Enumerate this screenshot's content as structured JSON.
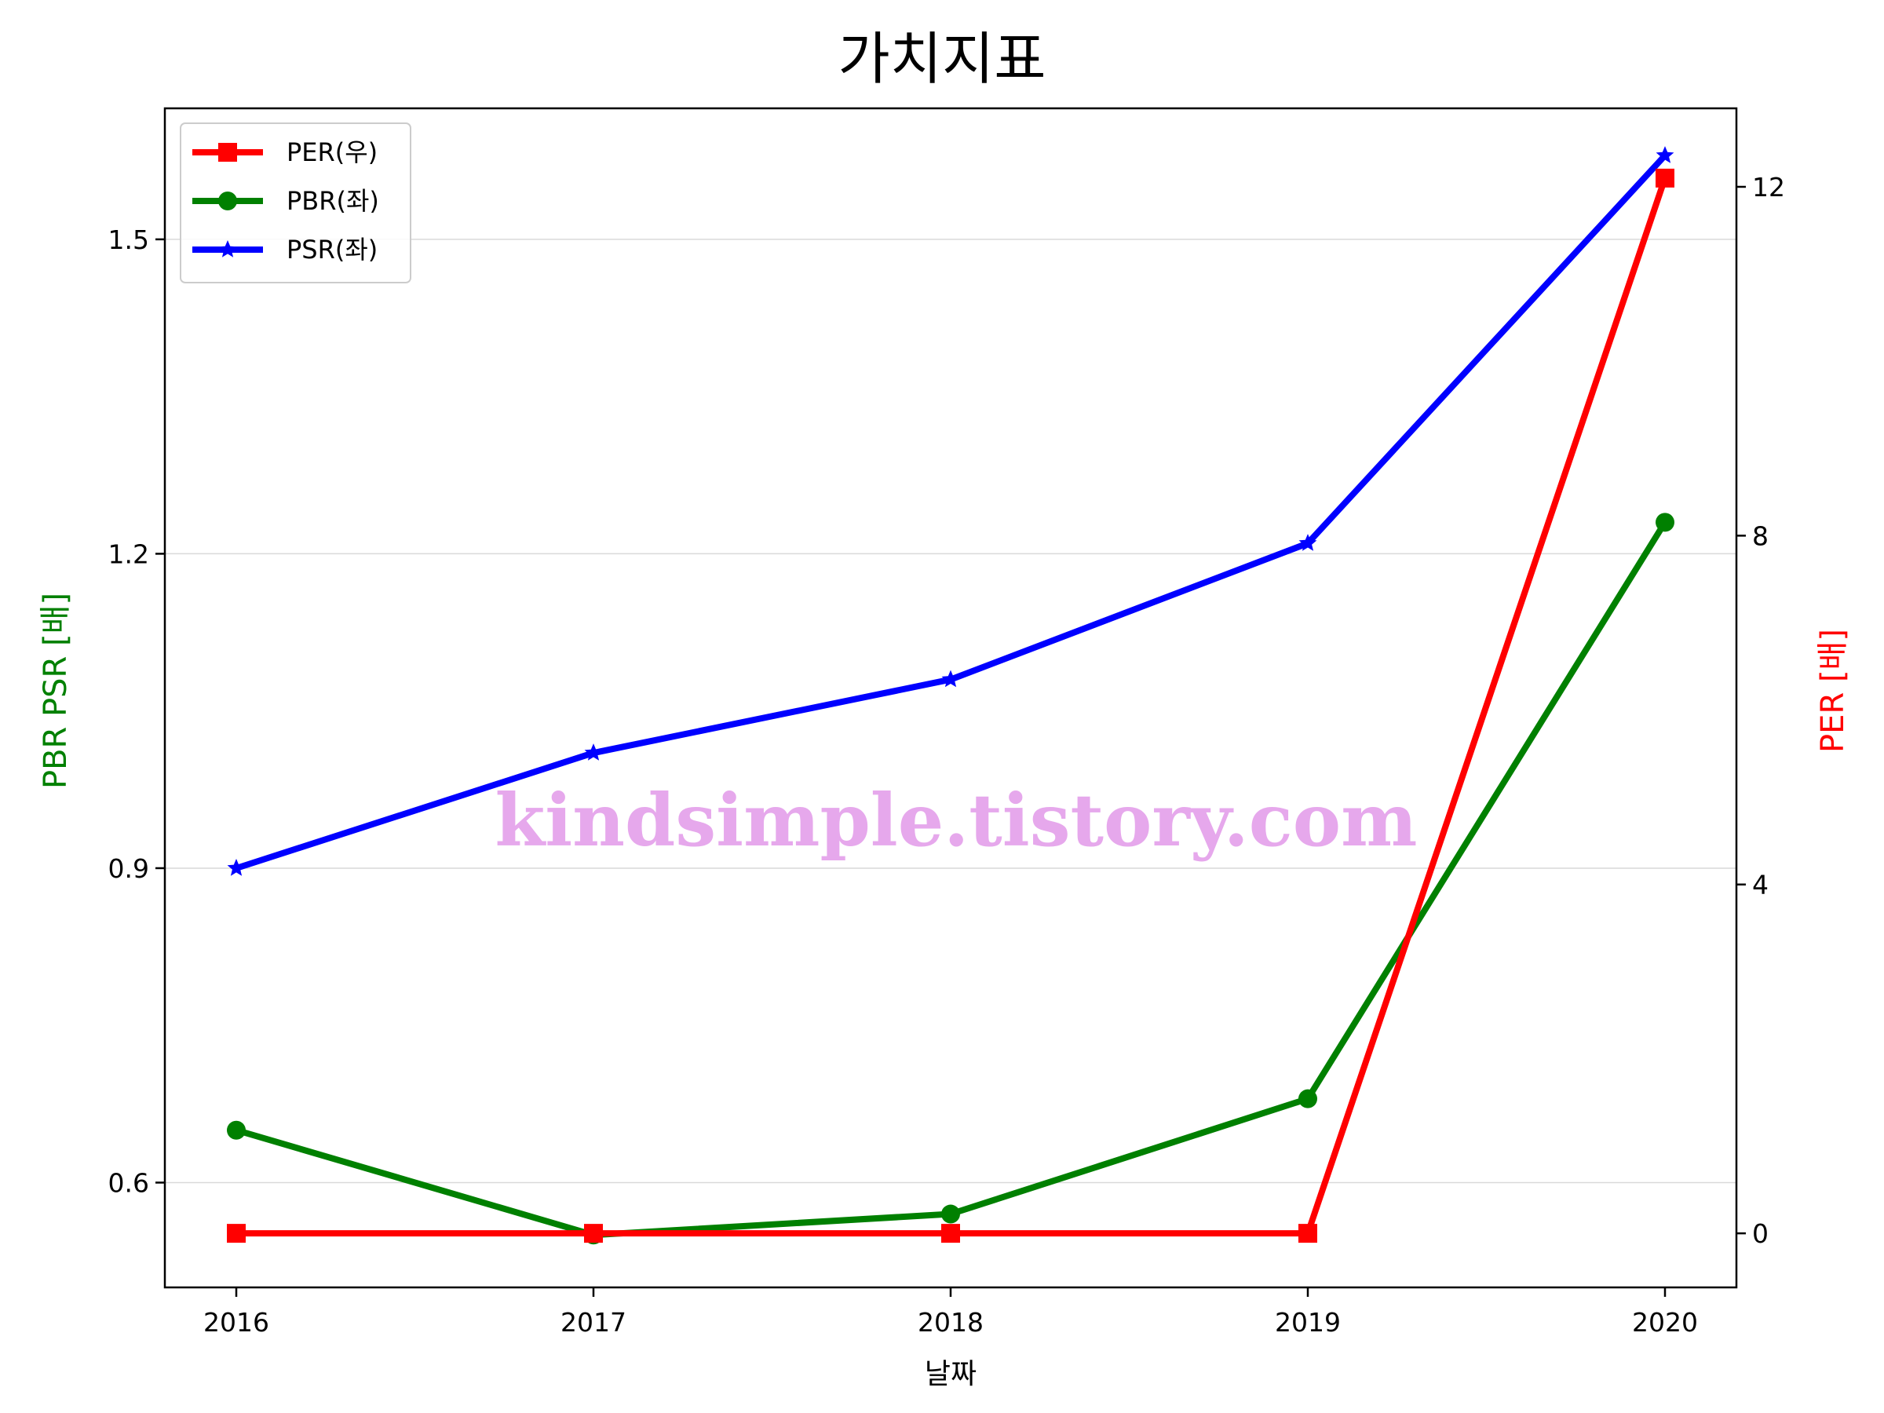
{
  "chart_data": {
    "type": "line",
    "title": "가치지표",
    "xlabel": "날짜",
    "ylabel_left": "PBR PSR [배]",
    "ylabel_right": "PER [배]",
    "categories": [
      "2016",
      "2017",
      "2018",
      "2019",
      "2020"
    ],
    "ylim_left": [
      0.5,
      1.625
    ],
    "yticks_left": [
      0.6,
      0.9,
      1.2,
      1.5
    ],
    "yticks_left_labels": [
      "0.6",
      "0.9",
      "1.2",
      "1.5"
    ],
    "ylim_right": [
      -0.62,
      12.9
    ],
    "yticks_right": [
      0,
      4,
      8,
      12
    ],
    "yticks_right_labels": [
      "0",
      "4",
      "8",
      "12"
    ],
    "grid": "horizontal",
    "legend_position": "top-left",
    "series": [
      {
        "name": "PER(우)",
        "axis": "right",
        "color": "#ff0000",
        "marker": "square",
        "values": [
          0,
          0,
          0,
          0,
          12.1
        ]
      },
      {
        "name": "PBR(좌)",
        "axis": "left",
        "color": "#008000",
        "marker": "circle",
        "values": [
          0.65,
          0.55,
          0.57,
          0.68,
          1.23
        ]
      },
      {
        "name": "PSR(좌)",
        "axis": "left",
        "color": "#0000ff",
        "marker": "star",
        "values": [
          0.9,
          1.01,
          1.08,
          1.21,
          1.58
        ]
      }
    ],
    "watermark": "kindsimple.tistory.com",
    "ylabel_left_color": "#008000",
    "ylabel_right_color": "#ff0000"
  }
}
